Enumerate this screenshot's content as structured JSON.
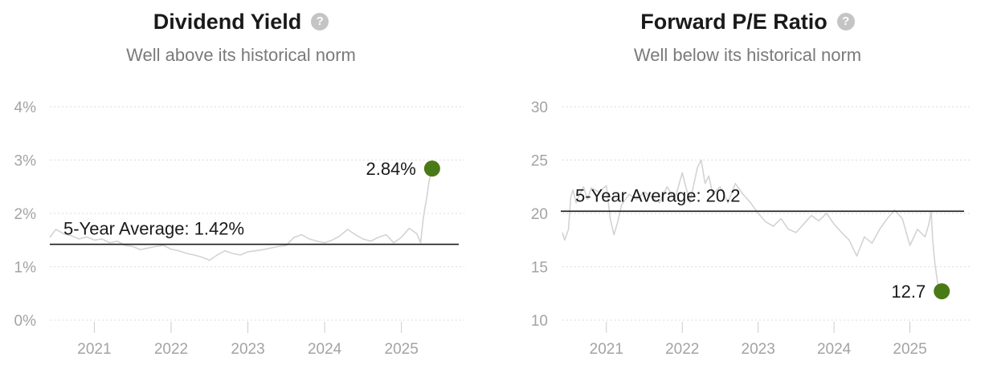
{
  "colors": {
    "series_line": "#d3d3d3",
    "grid": "#dddddd",
    "axis_text": "#a3a3a3",
    "average_line": "#1a1a1a",
    "marker": "#4a7a16",
    "title": "#1a1a1a",
    "subtitle": "#7a7a7a"
  },
  "help_icon_glyph": "?",
  "chart_data": [
    {
      "type": "line",
      "title": "Dividend Yield",
      "subtitle": "Well above its historical norm",
      "help_icon": "help-circle-icon",
      "xlabel": "",
      "ylabel": "",
      "x_ticks": [
        2021,
        2022,
        2023,
        2024,
        2025
      ],
      "x_range": [
        2020.42,
        2025.82
      ],
      "y_ticks": [
        0,
        1,
        2,
        3,
        4
      ],
      "y_tick_labels": [
        "0%",
        "1%",
        "2%",
        "3%",
        "4%"
      ],
      "ylim": [
        0,
        4
      ],
      "grid": true,
      "average": {
        "label": "5-Year Average: 1.42%",
        "value": 1.42
      },
      "current": {
        "label": "2.84%",
        "x": 2025.4,
        "y": 2.84
      },
      "series": [
        {
          "x": [
            2020.42,
            2020.5,
            2020.6,
            2020.7,
            2020.8,
            2020.9,
            2021.0,
            2021.1,
            2021.2,
            2021.3,
            2021.4,
            2021.5,
            2021.6,
            2021.7,
            2021.8,
            2021.9,
            2022.0,
            2022.1,
            2022.2,
            2022.3,
            2022.4,
            2022.5,
            2022.6,
            2022.7,
            2022.8,
            2022.9,
            2023.0,
            2023.1,
            2023.2,
            2023.3,
            2023.4,
            2023.5,
            2023.6,
            2023.7,
            2023.8,
            2023.9,
            2024.0,
            2024.1,
            2024.2,
            2024.3,
            2024.4,
            2024.5,
            2024.6,
            2024.7,
            2024.8,
            2024.9,
            2025.0,
            2025.1,
            2025.2,
            2025.25,
            2025.28,
            2025.3,
            2025.33,
            2025.36,
            2025.4
          ],
          "y": [
            1.55,
            1.7,
            1.62,
            1.58,
            1.52,
            1.56,
            1.5,
            1.52,
            1.45,
            1.48,
            1.4,
            1.38,
            1.32,
            1.35,
            1.38,
            1.4,
            1.33,
            1.3,
            1.25,
            1.22,
            1.18,
            1.12,
            1.22,
            1.3,
            1.25,
            1.22,
            1.28,
            1.3,
            1.32,
            1.35,
            1.38,
            1.4,
            1.55,
            1.6,
            1.52,
            1.48,
            1.45,
            1.5,
            1.58,
            1.7,
            1.6,
            1.52,
            1.48,
            1.55,
            1.6,
            1.45,
            1.55,
            1.72,
            1.62,
            1.45,
            1.85,
            2.05,
            2.3,
            2.6,
            2.84
          ]
        }
      ]
    },
    {
      "type": "line",
      "title": "Forward P/E Ratio",
      "subtitle": "Well below its historical norm",
      "help_icon": "help-circle-icon",
      "xlabel": "",
      "ylabel": "",
      "x_ticks": [
        2021,
        2022,
        2023,
        2024,
        2025
      ],
      "x_range": [
        2020.42,
        2025.82
      ],
      "y_ticks": [
        10,
        15,
        20,
        25,
        30
      ],
      "y_tick_labels": [
        "10",
        "15",
        "20",
        "25",
        "30"
      ],
      "ylim": [
        10,
        30
      ],
      "grid": true,
      "average": {
        "label": "5-Year Average: 20.2",
        "value": 20.2
      },
      "current": {
        "label": "12.7",
        "x": 2025.42,
        "y": 12.7
      },
      "series": [
        {
          "x": [
            2020.42,
            2020.45,
            2020.5,
            2020.53,
            2020.56,
            2020.6,
            2020.65,
            2020.7,
            2020.75,
            2020.8,
            2020.9,
            2021.0,
            2021.05,
            2021.1,
            2021.15,
            2021.2,
            2021.3,
            2021.4,
            2021.5,
            2021.6,
            2021.7,
            2021.8,
            2021.9,
            2022.0,
            2022.1,
            2022.2,
            2022.25,
            2022.3,
            2022.35,
            2022.4,
            2022.5,
            2022.6,
            2022.7,
            2022.8,
            2022.9,
            2023.0,
            2023.1,
            2023.2,
            2023.3,
            2023.4,
            2023.5,
            2023.6,
            2023.7,
            2023.8,
            2023.9,
            2024.0,
            2024.1,
            2024.2,
            2024.3,
            2024.4,
            2024.5,
            2024.6,
            2024.7,
            2024.8,
            2024.9,
            2025.0,
            2025.1,
            2025.2,
            2025.25,
            2025.28,
            2025.3,
            2025.33,
            2025.37,
            2025.42
          ],
          "y": [
            18.2,
            17.5,
            18.5,
            21.5,
            22.2,
            21.0,
            21.8,
            22.5,
            21.3,
            22.4,
            22.0,
            22.6,
            19.5,
            18.0,
            19.2,
            20.8,
            21.8,
            21.3,
            22.0,
            21.5,
            21.0,
            22.5,
            21.3,
            23.8,
            21.0,
            24.3,
            25.0,
            22.8,
            23.5,
            21.8,
            22.5,
            21.0,
            22.8,
            21.8,
            21.0,
            20.0,
            19.2,
            18.8,
            19.5,
            18.5,
            18.2,
            19.0,
            19.8,
            19.3,
            20.0,
            19.0,
            18.2,
            17.5,
            16.0,
            17.8,
            17.2,
            18.5,
            19.5,
            20.3,
            19.5,
            17.0,
            18.5,
            17.8,
            19.0,
            20.2,
            17.5,
            15.3,
            13.2,
            12.7
          ]
        }
      ]
    }
  ]
}
